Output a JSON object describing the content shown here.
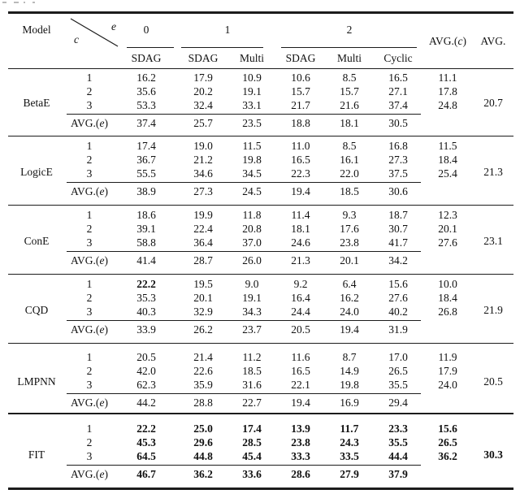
{
  "style": {
    "background": "#ffffff",
    "text_color": "#111111",
    "rule_color": "#1c1c1c"
  },
  "header": {
    "model_label": "Model",
    "diag": {
      "top_var": "e",
      "bottom_var": "c"
    },
    "groups": [
      {
        "label": "0",
        "span": 1
      },
      {
        "label": "1",
        "span": 2
      },
      {
        "label": "2",
        "span": 3
      }
    ],
    "subcols": [
      "SDAG",
      "SDAG",
      "Multi",
      "SDAG",
      "Multi",
      "Cyclic"
    ],
    "avg_c": {
      "pre": "AVG.(",
      "var": "c",
      "post": ")"
    },
    "avg_label": "AVG."
  },
  "avg_e_label": {
    "pre": "AVG.(",
    "var": "e",
    "post": ")"
  },
  "sections": [
    {
      "model": "BetaE",
      "rows": [
        {
          "c": "1",
          "values": [
            "16.2",
            "17.9",
            "10.9",
            "10.6",
            "8.5",
            "16.5"
          ],
          "avg_c": "11.1"
        },
        {
          "c": "2",
          "values": [
            "35.6",
            "20.2",
            "19.1",
            "15.7",
            "15.7",
            "27.1"
          ],
          "avg_c": "17.8"
        },
        {
          "c": "3",
          "values": [
            "53.3",
            "32.4",
            "33.1",
            "21.7",
            "21.6",
            "37.4"
          ],
          "avg_c": "24.8"
        }
      ],
      "avg_e": [
        "37.4",
        "25.7",
        "23.5",
        "18.8",
        "18.1",
        "30.5"
      ],
      "avg": "20.7",
      "bold": false,
      "bold_cells": []
    },
    {
      "model": "LogicE",
      "rows": [
        {
          "c": "1",
          "values": [
            "17.4",
            "19.0",
            "11.5",
            "11.0",
            "8.5",
            "16.8"
          ],
          "avg_c": "11.5"
        },
        {
          "c": "2",
          "values": [
            "36.7",
            "21.2",
            "19.8",
            "16.5",
            "16.1",
            "27.3"
          ],
          "avg_c": "18.4"
        },
        {
          "c": "3",
          "values": [
            "55.5",
            "34.6",
            "34.5",
            "22.3",
            "22.0",
            "37.5"
          ],
          "avg_c": "25.4"
        }
      ],
      "avg_e": [
        "38.9",
        "27.3",
        "24.5",
        "19.4",
        "18.5",
        "30.6"
      ],
      "avg": "21.3",
      "bold": false,
      "bold_cells": []
    },
    {
      "model": "ConE",
      "rows": [
        {
          "c": "1",
          "values": [
            "18.6",
            "19.9",
            "11.8",
            "11.4",
            "9.3",
            "18.7"
          ],
          "avg_c": "12.3"
        },
        {
          "c": "2",
          "values": [
            "39.1",
            "22.4",
            "20.8",
            "18.1",
            "17.6",
            "30.7"
          ],
          "avg_c": "20.1"
        },
        {
          "c": "3",
          "values": [
            "58.8",
            "36.4",
            "37.0",
            "24.6",
            "23.8",
            "41.7"
          ],
          "avg_c": "27.6"
        }
      ],
      "avg_e": [
        "41.4",
        "28.7",
        "26.0",
        "21.3",
        "20.1",
        "34.2"
      ],
      "avg": "23.1",
      "bold": false,
      "bold_cells": []
    },
    {
      "model": "CQD",
      "rows": [
        {
          "c": "1",
          "values": [
            "22.2",
            "19.5",
            "9.0",
            "9.2",
            "6.4",
            "15.6"
          ],
          "avg_c": "10.0"
        },
        {
          "c": "2",
          "values": [
            "35.3",
            "20.1",
            "19.1",
            "16.4",
            "16.2",
            "27.6"
          ],
          "avg_c": "18.4"
        },
        {
          "c": "3",
          "values": [
            "40.3",
            "32.9",
            "34.3",
            "24.4",
            "24.0",
            "40.2"
          ],
          "avg_c": "26.8"
        }
      ],
      "avg_e": [
        "33.9",
        "26.2",
        "23.7",
        "20.5",
        "19.4",
        "31.9"
      ],
      "avg": "21.9",
      "bold": false,
      "bold_cells": [
        [
          0,
          0
        ]
      ]
    },
    {
      "model": "LMPNN",
      "rows": [
        {
          "c": "1",
          "values": [
            "20.5",
            "21.4",
            "11.2",
            "11.6",
            "8.7",
            "17.0"
          ],
          "avg_c": "11.9"
        },
        {
          "c": "2",
          "values": [
            "42.0",
            "22.6",
            "18.5",
            "16.5",
            "14.9",
            "26.5"
          ],
          "avg_c": "17.9"
        },
        {
          "c": "3",
          "values": [
            "62.3",
            "35.9",
            "31.6",
            "22.1",
            "19.8",
            "35.5"
          ],
          "avg_c": "24.0"
        }
      ],
      "avg_e": [
        "44.2",
        "28.8",
        "22.7",
        "19.4",
        "16.9",
        "29.4"
      ],
      "avg": "20.5",
      "bold": false,
      "bold_cells": []
    },
    {
      "model": "FIT",
      "rows": [
        {
          "c": "1",
          "values": [
            "22.2",
            "25.0",
            "17.4",
            "13.9",
            "11.7",
            "23.3"
          ],
          "avg_c": "15.6"
        },
        {
          "c": "2",
          "values": [
            "45.3",
            "29.6",
            "28.5",
            "23.8",
            "24.3",
            "35.5"
          ],
          "avg_c": "26.5"
        },
        {
          "c": "3",
          "values": [
            "64.5",
            "44.8",
            "45.4",
            "33.3",
            "33.5",
            "44.4"
          ],
          "avg_c": "36.2"
        }
      ],
      "avg_e": [
        "46.7",
        "36.2",
        "33.6",
        "28.6",
        "27.9",
        "37.9"
      ],
      "avg": "30.3",
      "bold": true,
      "bold_cells": []
    }
  ]
}
